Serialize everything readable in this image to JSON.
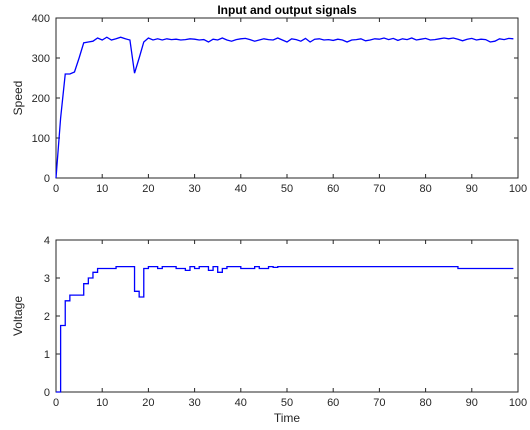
{
  "chart_data": [
    {
      "type": "line",
      "title": "Input and output signals",
      "xlabel": "",
      "ylabel": "Speed",
      "xlim": [
        0,
        100
      ],
      "ylim": [
        0,
        400
      ],
      "xticks": [
        0,
        10,
        20,
        30,
        40,
        50,
        60,
        70,
        80,
        90,
        100
      ],
      "yticks": [
        0,
        100,
        200,
        300,
        400
      ],
      "grid": false,
      "color": "#0000ff",
      "x": [
        0,
        1,
        2,
        3,
        4,
        5,
        6,
        7,
        8,
        9,
        10,
        11,
        12,
        13,
        14,
        15,
        16,
        17,
        18,
        19,
        20,
        21,
        22,
        23,
        24,
        25,
        26,
        27,
        28,
        29,
        30,
        31,
        32,
        33,
        34,
        35,
        36,
        37,
        38,
        39,
        40,
        41,
        42,
        43,
        44,
        45,
        46,
        47,
        48,
        49,
        50,
        51,
        52,
        53,
        54,
        55,
        56,
        57,
        58,
        59,
        60,
        61,
        62,
        63,
        64,
        65,
        66,
        67,
        68,
        69,
        70,
        71,
        72,
        73,
        74,
        75,
        76,
        77,
        78,
        79,
        80,
        81,
        82,
        83,
        84,
        85,
        86,
        87,
        88,
        89,
        90,
        91,
        92,
        93,
        94,
        95,
        96,
        97,
        98,
        99
      ],
      "y": [
        0,
        150,
        260,
        260,
        265,
        300,
        338,
        340,
        342,
        350,
        345,
        352,
        345,
        348,
        352,
        348,
        345,
        262,
        300,
        340,
        350,
        345,
        348,
        345,
        348,
        346,
        347,
        345,
        346,
        348,
        347,
        345,
        346,
        340,
        347,
        345,
        350,
        345,
        342,
        346,
        348,
        349,
        346,
        342,
        345,
        348,
        346,
        345,
        350,
        345,
        340,
        348,
        346,
        342,
        349,
        340,
        347,
        348,
        345,
        346,
        344,
        347,
        345,
        340,
        345,
        346,
        348,
        343,
        345,
        348,
        347,
        350,
        346,
        349,
        344,
        348,
        346,
        350,
        345,
        347,
        349,
        345,
        346,
        348,
        350,
        348,
        350,
        347,
        343,
        347,
        349,
        345,
        347,
        346,
        340,
        342,
        348,
        346,
        349,
        348
      ]
    },
    {
      "type": "line",
      "title": "",
      "xlabel": "Time",
      "ylabel": "Voltage",
      "xlim": [
        0,
        100
      ],
      "ylim": [
        0,
        4
      ],
      "xticks": [
        0,
        10,
        20,
        30,
        40,
        50,
        60,
        70,
        80,
        90,
        100
      ],
      "yticks": [
        0,
        1,
        2,
        3,
        4
      ],
      "grid": false,
      "step": true,
      "color": "#0000ff",
      "x": [
        0,
        1,
        2,
        3,
        4,
        5,
        6,
        7,
        8,
        9,
        10,
        11,
        12,
        13,
        14,
        15,
        16,
        17,
        18,
        19,
        20,
        21,
        22,
        23,
        24,
        25,
        26,
        27,
        28,
        29,
        30,
        31,
        32,
        33,
        34,
        35,
        36,
        37,
        38,
        39,
        40,
        41,
        42,
        43,
        44,
        45,
        46,
        47,
        48,
        49,
        50,
        51,
        52,
        53,
        54,
        55,
        56,
        57,
        58,
        59,
        60,
        61,
        62,
        63,
        64,
        65,
        66,
        67,
        68,
        69,
        70,
        71,
        72,
        73,
        74,
        75,
        76,
        77,
        78,
        79,
        80,
        81,
        82,
        83,
        84,
        85,
        86,
        87,
        88,
        89,
        90,
        91,
        92,
        93,
        94,
        95,
        96,
        97,
        98,
        99
      ],
      "y": [
        0,
        1.75,
        2.4,
        2.55,
        2.55,
        2.55,
        2.85,
        3.0,
        3.15,
        3.25,
        3.25,
        3.25,
        3.25,
        3.3,
        3.3,
        3.3,
        3.3,
        2.65,
        2.5,
        3.25,
        3.3,
        3.3,
        3.25,
        3.3,
        3.3,
        3.3,
        3.25,
        3.25,
        3.2,
        3.3,
        3.25,
        3.3,
        3.3,
        3.2,
        3.3,
        3.15,
        3.25,
        3.3,
        3.3,
        3.3,
        3.25,
        3.25,
        3.25,
        3.3,
        3.25,
        3.25,
        3.3,
        3.28,
        3.3,
        3.3,
        3.3,
        3.3,
        3.3,
        3.3,
        3.3,
        3.3,
        3.3,
        3.3,
        3.3,
        3.3,
        3.3,
        3.3,
        3.3,
        3.3,
        3.3,
        3.3,
        3.3,
        3.3,
        3.3,
        3.3,
        3.3,
        3.3,
        3.3,
        3.3,
        3.3,
        3.3,
        3.3,
        3.3,
        3.3,
        3.3,
        3.3,
        3.3,
        3.3,
        3.3,
        3.3,
        3.3,
        3.3,
        3.25,
        3.25,
        3.25,
        3.25,
        3.25,
        3.25,
        3.25,
        3.25,
        3.25,
        3.25,
        3.25,
        3.25,
        3.25
      ]
    }
  ]
}
